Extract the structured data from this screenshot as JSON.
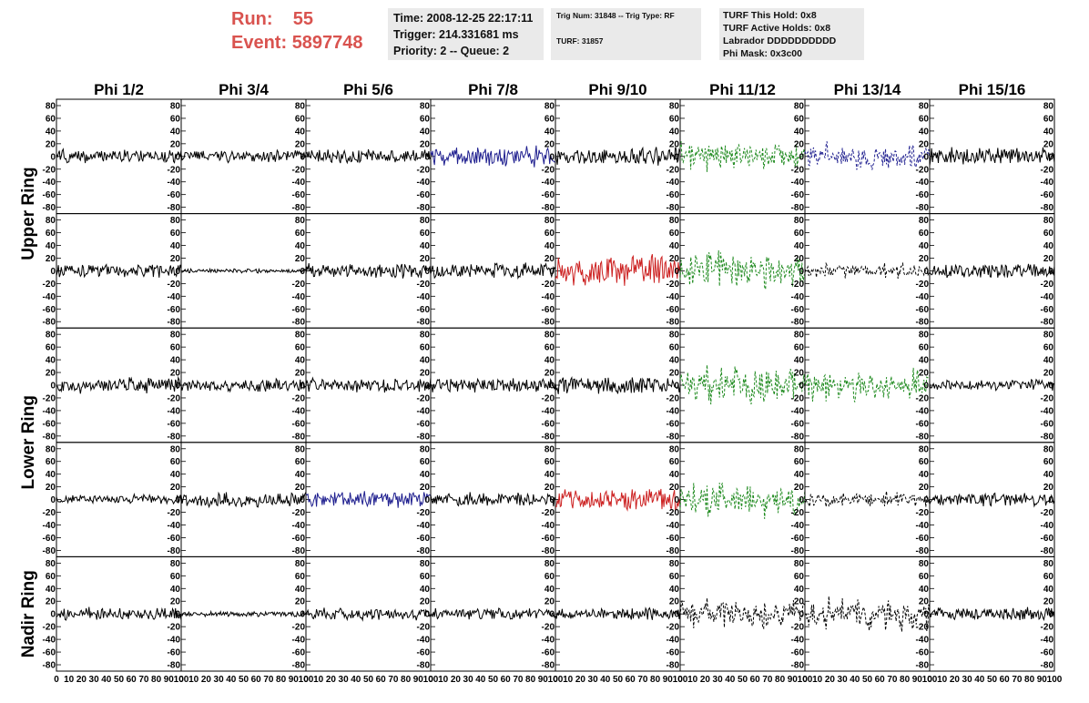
{
  "run": {
    "run_label": "Run:",
    "run_value": "55",
    "event_label": "Event:",
    "event_value": "5897748"
  },
  "time_box": {
    "time": "Time: 2008-12-25 22:17:11",
    "trigger": "Trigger: 214.331681 ms",
    "priority": "Priority: 2 -- Queue: 2"
  },
  "trig_box": {
    "trig": "Trig Num: 31848 -- Trig Type: RF",
    "turf": "TURF: 31857"
  },
  "turf_box": {
    "hold": "TURF This Hold: 0x8",
    "active": "TURF Active Holds: 0x8",
    "labrador": "Labrador DDDDDDDDDD",
    "phimask": "Phi Mask: 0x3c00"
  },
  "columns": [
    "Phi 1/2",
    "Phi 3/4",
    "Phi 5/6",
    "Phi 7/8",
    "Phi 9/10",
    "Phi 11/12",
    "Phi 13/14",
    "Phi 15/16"
  ],
  "ring_labels": [
    {
      "text": "Upper Ring",
      "rows": [
        0,
        1
      ]
    },
    {
      "text": "Lower Ring",
      "rows": [
        2,
        3
      ]
    },
    {
      "text": "Nadir Ring",
      "rows": [
        4,
        4
      ]
    }
  ],
  "colors": {
    "black": "#000000",
    "blue": "#1f1f8f",
    "red": "#cc2020",
    "green": "#1e8a1e"
  },
  "chart_data": {
    "type": "line",
    "description_axes": "8 columns x 5 rows of waveform panels sharing axes",
    "xlim": [
      0,
      100
    ],
    "ylim": [
      -90,
      90
    ],
    "yticks": [
      -80,
      -60,
      -40,
      -20,
      0,
      20,
      40,
      60,
      80
    ],
    "ytick_labels": [
      "-80",
      "-60",
      "-40",
      "-20",
      "0",
      "20",
      "40",
      "60",
      "80"
    ],
    "xtick_labels": [
      "0",
      "10",
      "20",
      "30",
      "40",
      "50",
      "60",
      "70",
      "80",
      "90",
      "100"
    ],
    "panels": [
      [
        {
          "color": "black",
          "amp": 10,
          "style": "solid"
        },
        {
          "color": "black",
          "amp": 9,
          "style": "solid"
        },
        {
          "color": "black",
          "amp": 10,
          "style": "solid"
        },
        {
          "color": "blue",
          "amp": 15,
          "style": "solid"
        },
        {
          "color": "black",
          "amp": 13,
          "style": "solid"
        },
        {
          "color": "green",
          "amp": 20,
          "style": "dashed"
        },
        {
          "color": "blue",
          "amp": 20,
          "style": "dashed"
        },
        {
          "color": "black",
          "amp": 13,
          "style": "solid"
        }
      ],
      [
        {
          "color": "black",
          "amp": 10,
          "style": "solid"
        },
        {
          "color": "black",
          "amp": 3,
          "style": "solid"
        },
        {
          "color": "black",
          "amp": 11,
          "style": "solid"
        },
        {
          "color": "black",
          "amp": 12,
          "style": "solid"
        },
        {
          "color": "red",
          "amp": 22,
          "style": "solid"
        },
        {
          "color": "green",
          "amp": 28,
          "style": "dashed"
        },
        {
          "color": "black",
          "amp": 11,
          "style": "dashed"
        },
        {
          "color": "black",
          "amp": 11,
          "style": "solid"
        }
      ],
      [
        {
          "color": "black",
          "amp": 12,
          "style": "solid"
        },
        {
          "color": "black",
          "amp": 9,
          "style": "solid"
        },
        {
          "color": "black",
          "amp": 11,
          "style": "solid"
        },
        {
          "color": "black",
          "amp": 10,
          "style": "solid"
        },
        {
          "color": "black",
          "amp": 13,
          "style": "solid"
        },
        {
          "color": "green",
          "amp": 26,
          "style": "dashed"
        },
        {
          "color": "green",
          "amp": 22,
          "style": "dashed"
        },
        {
          "color": "black",
          "amp": 8,
          "style": "solid"
        }
      ],
      [
        {
          "color": "black",
          "amp": 7,
          "style": "solid"
        },
        {
          "color": "black",
          "amp": 11,
          "style": "solid"
        },
        {
          "color": "blue",
          "amp": 13,
          "style": "solid"
        },
        {
          "color": "black",
          "amp": 10,
          "style": "solid"
        },
        {
          "color": "red",
          "amp": 17,
          "style": "solid"
        },
        {
          "color": "green",
          "amp": 25,
          "style": "dashed"
        },
        {
          "color": "black",
          "amp": 10,
          "style": "dashed"
        },
        {
          "color": "black",
          "amp": 10,
          "style": "solid"
        }
      ],
      [
        {
          "color": "black",
          "amp": 10,
          "style": "solid"
        },
        {
          "color": "black",
          "amp": 4,
          "style": "solid"
        },
        {
          "color": "black",
          "amp": 9,
          "style": "solid"
        },
        {
          "color": "black",
          "amp": 8,
          "style": "solid"
        },
        {
          "color": "black",
          "amp": 9,
          "style": "solid"
        },
        {
          "color": "black",
          "amp": 22,
          "style": "dashed"
        },
        {
          "color": "black",
          "amp": 22,
          "style": "dashed"
        },
        {
          "color": "black",
          "amp": 11,
          "style": "solid"
        }
      ]
    ]
  }
}
